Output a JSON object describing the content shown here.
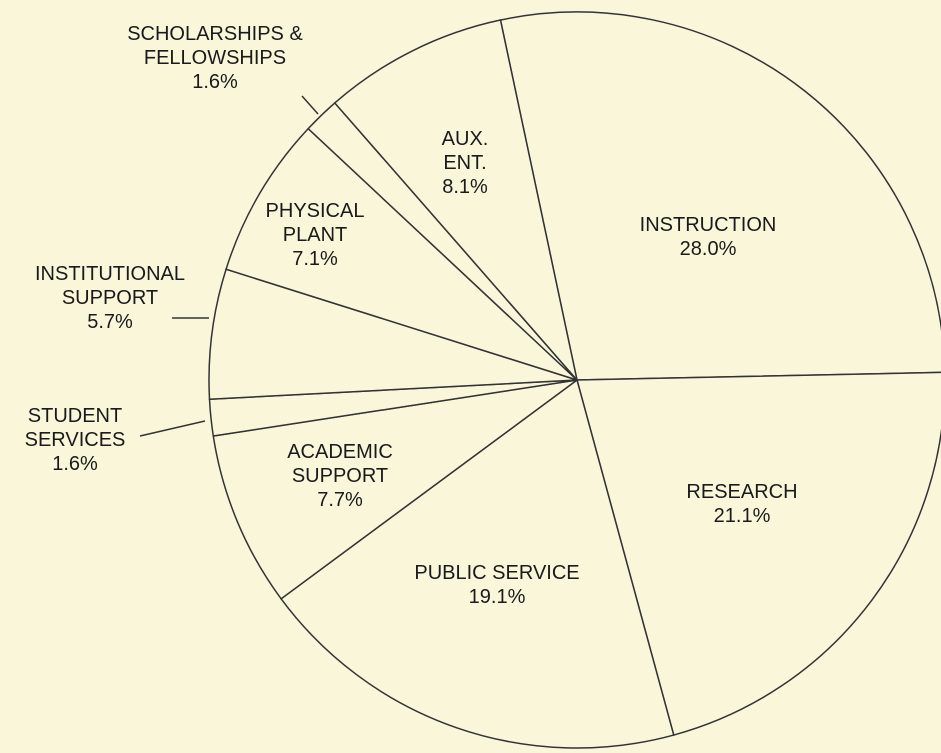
{
  "chart_data": {
    "type": "pie",
    "categories": [
      "INSTRUCTION",
      "RESEARCH",
      "PUBLIC SERVICE",
      "ACADEMIC SUPPORT",
      "STUDENT SERVICES",
      "INSTITUTIONAL SUPPORT",
      "PHYSICAL PLANT",
      "SCHOLARSHIPS & FELLOWSHIPS",
      "AUX. ENT."
    ],
    "values": [
      28.0,
      21.1,
      19.1,
      7.7,
      1.6,
      5.7,
      7.1,
      1.6,
      8.1
    ],
    "value_labels": [
      "28.0%",
      "21.1%",
      "19.1%",
      "7.7%",
      "1.6%",
      "5.7%",
      "7.1%",
      "1.6%",
      "8.1%"
    ],
    "color": "#f9f6da"
  }
}
